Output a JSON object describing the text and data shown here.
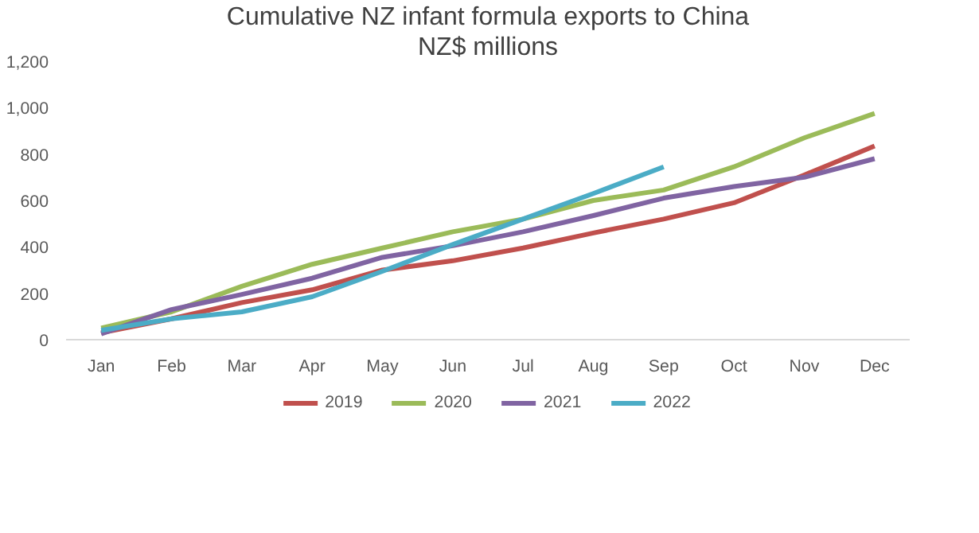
{
  "chart_data": {
    "type": "line",
    "title": "Cumulative NZ infant formula exports to China",
    "subtitle": "NZ$ millions",
    "categories": [
      "Jan",
      "Feb",
      "Mar",
      "Apr",
      "May",
      "Jun",
      "Jul",
      "Aug",
      "Sep",
      "Oct",
      "Nov",
      "Dec"
    ],
    "series": [
      {
        "name": "2019",
        "color": "#c0504d",
        "values": [
          30,
          90,
          160,
          215,
          300,
          340,
          395,
          460,
          520,
          590,
          710,
          835
        ]
      },
      {
        "name": "2020",
        "color": "#9bbb59",
        "values": [
          50,
          120,
          230,
          325,
          395,
          465,
          520,
          600,
          645,
          745,
          870,
          975
        ]
      },
      {
        "name": "2021",
        "color": "#8064a2",
        "values": [
          25,
          130,
          195,
          265,
          355,
          405,
          465,
          535,
          610,
          660,
          700,
          780
        ]
      },
      {
        "name": "2022",
        "color": "#4bacc6",
        "values": [
          40,
          90,
          120,
          185,
          295,
          410,
          520,
          630,
          745,
          null,
          null,
          null
        ]
      }
    ],
    "ylim": [
      0,
      1200
    ],
    "yticks": [
      0,
      {
        "value": 200,
        "label": "200"
      },
      {
        "value": 400,
        "label": "400"
      },
      {
        "value": 600,
        "label": "600"
      },
      {
        "value": 800,
        "label": "800"
      },
      {
        "value": 1000,
        "label": "1,000"
      },
      {
        "value": 1200,
        "label": "1,200"
      }
    ],
    "grid": false,
    "legend": "bottom",
    "marker": "none",
    "line_style": "solid"
  }
}
